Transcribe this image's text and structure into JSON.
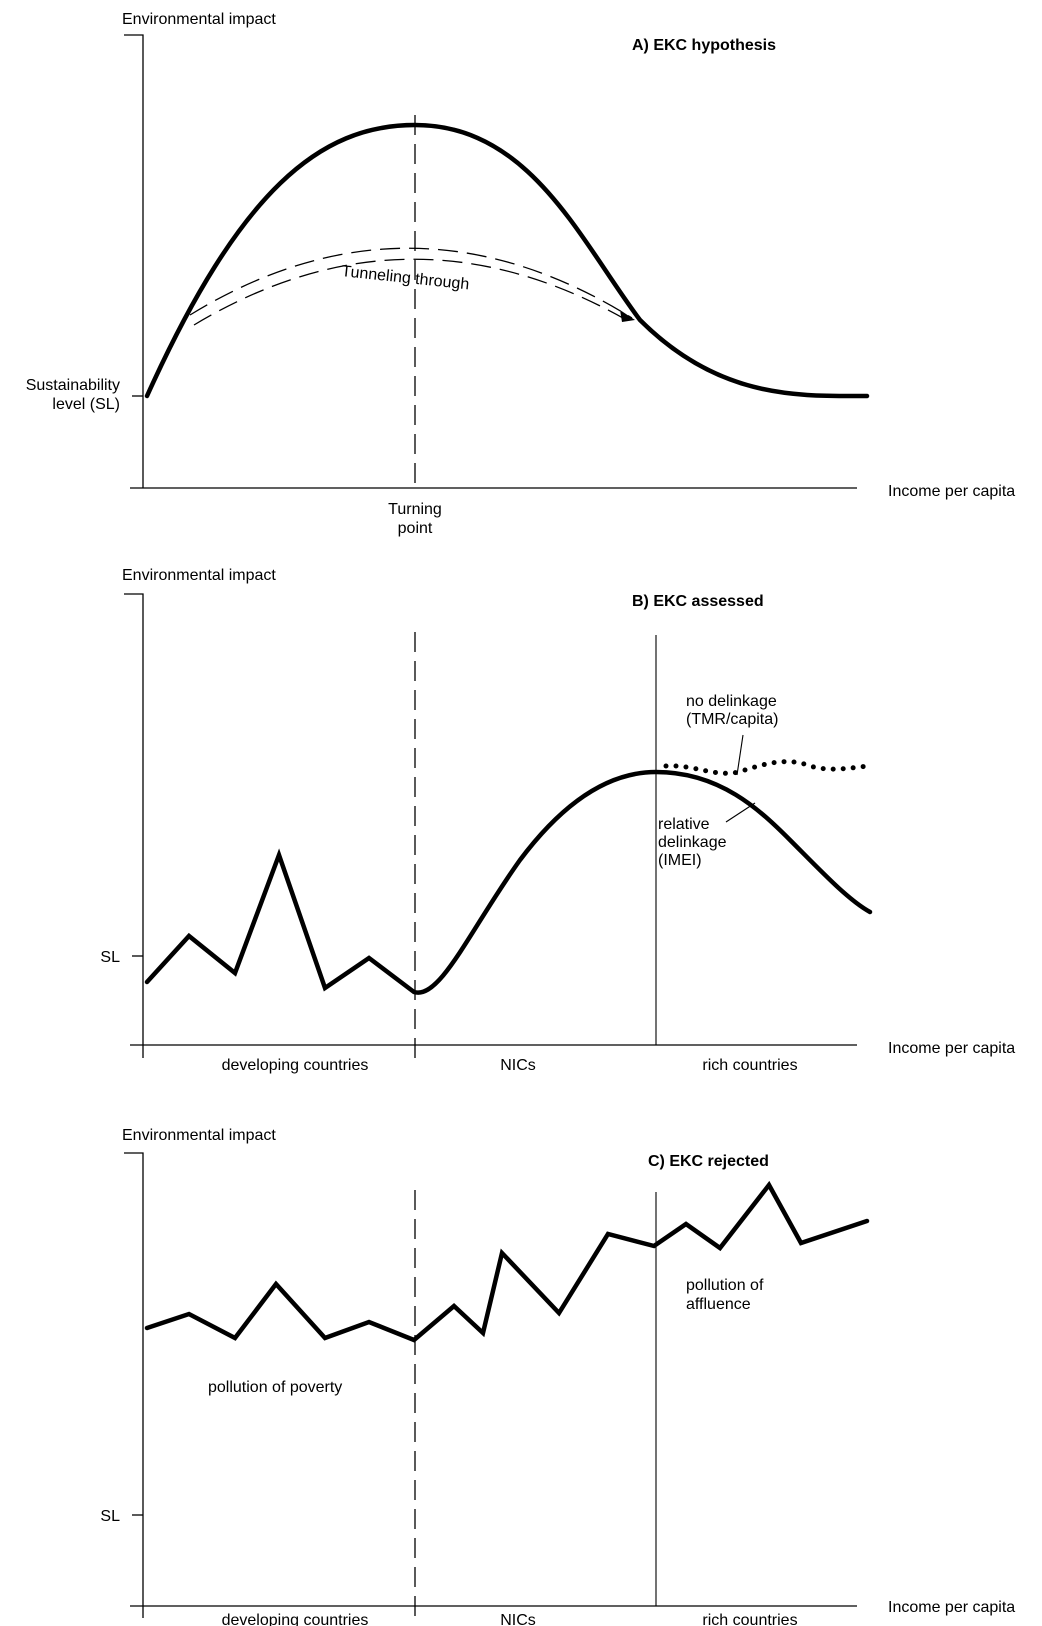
{
  "panel_a": {
    "title": "A)  EKC hypothesis",
    "y_axis_label": "Environmental impact",
    "x_axis_label": "Income per capita",
    "sl_label_line1": "Sustainability",
    "sl_label_line2": "level (SL)",
    "turning_point_line1": "Turning",
    "turning_point_line2": "point",
    "tunnel_label": "Tunneling through"
  },
  "panel_b": {
    "title": "B)  EKC assessed",
    "y_axis_label": "Environmental impact",
    "x_axis_label": "Income per capita",
    "sl_label": "SL",
    "no_delinkage_line1": "no delinkage",
    "no_delinkage_line2": "(TMR/capita)",
    "relative_line1": "relative",
    "relative_line2": "delinkage",
    "relative_line3": "(IMEI)",
    "region_1": "developing countries",
    "region_2": "NICs",
    "region_3": "rich countries"
  },
  "panel_c": {
    "title": "C)  EKC rejected",
    "y_axis_label": "Environmental impact",
    "x_axis_label": "Income per capita",
    "sl_label": "SL",
    "poverty_label": "pollution of poverty",
    "affluence_line1": "pollution of",
    "affluence_line2": "affluence",
    "region_1": "developing countries",
    "region_2": "NICs",
    "region_3": "rich countries"
  }
}
